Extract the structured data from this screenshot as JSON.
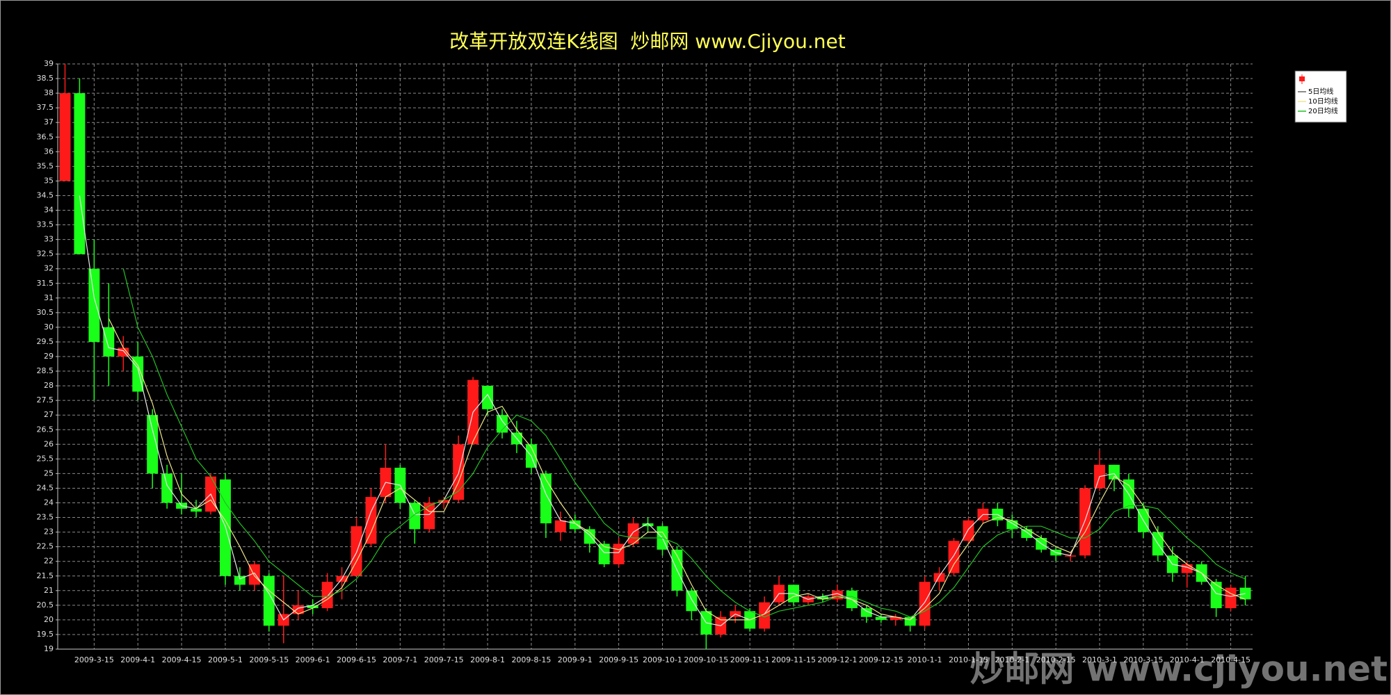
{
  "chart_data": {
    "type": "candlestick",
    "title": "改革开放双连K线图  炒邮网 www.Cjiyou.net",
    "watermark": "炒邮网 www.cjiyou.net",
    "categories": [
      null,
      null,
      "2009-3-15",
      null,
      null,
      "2009-4-1",
      null,
      null,
      "2009-4-15",
      null,
      null,
      "2009-5-1",
      null,
      null,
      "2009-5-15",
      null,
      null,
      "2009-6-1",
      null,
      null,
      "2009-6-15",
      null,
      null,
      "2009-7-1",
      null,
      null,
      "2009-7-15",
      null,
      null,
      "2009-8-1",
      null,
      null,
      "2009-8-15",
      null,
      null,
      "2009-9-1",
      null,
      null,
      "2009-9-15",
      null,
      null,
      "2009-10-1",
      null,
      null,
      "2009-10-15",
      null,
      null,
      "2009-11-1",
      null,
      null,
      "2009-11-15",
      null,
      null,
      "2009-12-1",
      null,
      null,
      "2009-12-15",
      null,
      null,
      "2010-1-1",
      null,
      null,
      "2010-1-15",
      null,
      null,
      "2010-2-1",
      null,
      null,
      "2010-2-15",
      null,
      null,
      "2010-3-1",
      null,
      null,
      "2010-3-15",
      null,
      null,
      "2010-4-1",
      null,
      null,
      "2010-4-15",
      null
    ],
    "open": [
      35,
      38,
      32,
      30,
      29,
      29,
      27,
      25,
      24,
      23.8,
      23.7,
      24.8,
      21.5,
      21.2,
      21.5,
      19.8,
      20.2,
      20.5,
      20.4,
      21.3,
      21.5,
      22.6,
      24.2,
      25.2,
      24,
      23.1,
      24,
      24.1,
      26,
      28,
      27,
      26.4,
      26,
      25,
      23,
      23.4,
      23.1,
      22.6,
      21.9,
      22.6,
      23.3,
      23.2,
      22.4,
      21,
      20.3,
      19.5,
      20.1,
      20.3,
      19.7,
      20.6,
      21.2,
      20.6,
      20.8,
      20.7,
      21,
      20.4,
      20.1,
      20,
      20.1,
      19.8,
      21.3,
      21.6,
      22.7,
      23.4,
      23.8,
      23.4,
      23.1,
      22.8,
      22.4,
      22.2,
      22.2,
      24.5,
      25.3,
      24.8,
      23.8,
      23,
      22.2,
      21.6,
      21.9,
      21.3,
      20.4,
      21.1
    ],
    "high": [
      39,
      38.5,
      33,
      31.5,
      29.7,
      29.5,
      27.2,
      25.3,
      25,
      24.1,
      25,
      25,
      21.8,
      22,
      21.6,
      21.5,
      21,
      20.7,
      21.6,
      21.8,
      23.5,
      24.5,
      26,
      25.3,
      24.1,
      24.2,
      24.2,
      26.3,
      28.3,
      28,
      27.2,
      26.8,
      26.2,
      25.1,
      23.7,
      23.6,
      23.2,
      22.7,
      22.8,
      23.5,
      23.5,
      23.3,
      22.5,
      21.1,
      20.4,
      20.3,
      20.5,
      20.4,
      20.8,
      21.5,
      21.2,
      20.9,
      20.9,
      21.2,
      21.1,
      20.5,
      20.2,
      20.2,
      20.1,
      21.5,
      21.8,
      22.8,
      23.5,
      24,
      24,
      23.6,
      23.2,
      22.9,
      22.5,
      22.3,
      24.6,
      25.8,
      25.3,
      25,
      24,
      23.2,
      22.5,
      22,
      22,
      21.4,
      21.2,
      21.5
    ],
    "low": [
      35,
      32.5,
      27.5,
      28,
      28.5,
      27.5,
      24.5,
      23.8,
      23.6,
      23.5,
      23.6,
      21.2,
      21,
      21,
      19.6,
      19.2,
      20,
      20.2,
      20.3,
      20.7,
      21.5,
      22.5,
      24,
      23.8,
      22.6,
      23,
      23.8,
      24,
      26,
      27,
      26.2,
      25.7,
      25,
      22.8,
      22.7,
      23,
      22.3,
      21.8,
      21.8,
      22.5,
      23,
      22.2,
      20.8,
      20,
      19,
      19.4,
      19.9,
      19.6,
      19.6,
      20.5,
      20.5,
      20.5,
      20.6,
      20.6,
      20.3,
      19.9,
      19.9,
      19.8,
      19.6,
      19.7,
      21,
      21.5,
      22.6,
      23.3,
      23.2,
      22.8,
      22.7,
      22.3,
      22,
      22,
      22.1,
      24.4,
      24.4,
      23.5,
      22.8,
      22,
      21.3,
      21.1,
      21.2,
      20.1,
      20.3,
      20.5
    ],
    "close": [
      38,
      32.5,
      29.5,
      29,
      29.3,
      27.8,
      25,
      24,
      23.8,
      23.7,
      24.9,
      21.5,
      21.2,
      21.9,
      19.8,
      20.2,
      20.5,
      20.4,
      21.3,
      21.5,
      23.2,
      24.2,
      25.2,
      24,
      23.1,
      24,
      24.1,
      26,
      28.2,
      27.2,
      26.4,
      26,
      25.2,
      23.3,
      23.4,
      23.1,
      22.6,
      21.9,
      22.6,
      23.3,
      23.2,
      22.4,
      21,
      20.3,
      19.5,
      20.1,
      20.3,
      19.7,
      20.6,
      21.2,
      20.6,
      20.8,
      20.7,
      21,
      20.4,
      20.1,
      20,
      20.1,
      19.8,
      21.3,
      21.6,
      22.7,
      23.4,
      23.8,
      23.4,
      23.1,
      22.8,
      22.4,
      22.2,
      22.2,
      24.5,
      25.3,
      24.8,
      23.8,
      23,
      22.2,
      21.6,
      21.9,
      21.3,
      20.4,
      21.1,
      20.7
    ],
    "up_color": "#ff1a1a",
    "down_color": "#1aff1a",
    "series": [
      {
        "name": "5日均线",
        "color": "#e8e8e8",
        "values": [
          null,
          34.5,
          31,
          29.3,
          29.2,
          28.6,
          26.5,
          24.6,
          23.9,
          23.8,
          24.3,
          23.2,
          21.4,
          21.6,
          20.9,
          20,
          20.4,
          20.5,
          20.8,
          21.4,
          22.3,
          23.7,
          24.7,
          24.6,
          23.6,
          23.6,
          24.1,
          25,
          27.1,
          27.7,
          26.8,
          26.2,
          25.6,
          24.3,
          23.4,
          23.3,
          22.9,
          22.3,
          22.3,
          23,
          23.3,
          22.8,
          21.7,
          20.7,
          19.9,
          19.8,
          20.2,
          20,
          20.2,
          20.9,
          20.9,
          20.7,
          20.8,
          20.9,
          20.7,
          20.3,
          20.1,
          20.1,
          20,
          20.6,
          21.5,
          22.2,
          23.1,
          23.6,
          23.6,
          23.3,
          23,
          22.6,
          22.3,
          22.2,
          23.4,
          24.9,
          25,
          24.3,
          23.4,
          22.6,
          21.9,
          21.8,
          21.6,
          20.9,
          20.8,
          20.9
        ]
      },
      {
        "name": "10日均线",
        "color": "#f0e68c",
        "values": [
          null,
          null,
          null,
          30.3,
          29.3,
          28.7,
          27.4,
          25.6,
          24.3,
          23.8,
          24.1,
          23.4,
          22.5,
          21.5,
          21,
          20.6,
          20.2,
          20.4,
          20.7,
          21.1,
          22,
          23,
          24.2,
          24.5,
          24.1,
          23.7,
          23.7,
          24.7,
          26.1,
          27.1,
          27.3,
          26.5,
          25.9,
          24.8,
          24,
          23.3,
          23,
          22.5,
          22.4,
          22.6,
          23,
          23,
          22.2,
          21.2,
          20.3,
          20,
          20,
          20,
          20.2,
          20.5,
          20.8,
          20.9,
          20.7,
          20.8,
          20.7,
          20.5,
          20.2,
          20.1,
          20,
          20.4,
          20.9,
          21.9,
          22.6,
          23.3,
          23.5,
          23.4,
          23.1,
          22.8,
          22.5,
          22.3,
          23,
          24,
          24.9,
          24.6,
          23.9,
          23,
          22.3,
          21.9,
          21.6,
          21.2,
          20.9,
          20.7
        ]
      },
      {
        "name": "20日均线",
        "color": "#22c022",
        "values": [
          null,
          null,
          null,
          null,
          32,
          30,
          29,
          27.7,
          26.6,
          25.5,
          24.9,
          24,
          23.3,
          22.7,
          22,
          21.6,
          21.2,
          20.8,
          20.8,
          21,
          21.4,
          22,
          22.8,
          23.2,
          23.6,
          23.9,
          24.1,
          24.4,
          25,
          25.9,
          26.5,
          27,
          26.8,
          26.3,
          25.5,
          24.7,
          24,
          23.3,
          22.9,
          22.8,
          22.8,
          22.8,
          22.6,
          22.1,
          21.5,
          21,
          20.6,
          20.3,
          20.1,
          20.3,
          20.4,
          20.5,
          20.6,
          20.8,
          20.8,
          20.6,
          20.4,
          20.3,
          20.1,
          20.3,
          20.6,
          21.1,
          21.8,
          22.5,
          22.9,
          23.1,
          23.2,
          23.2,
          23,
          22.8,
          22.8,
          23.1,
          23.7,
          23.9,
          23.9,
          23.8,
          23.3,
          22.8,
          22.4,
          21.9,
          21.6,
          21.4
        ]
      }
    ],
    "ylim": [
      19,
      39
    ],
    "yticks": [
      19,
      19.5,
      20,
      20.5,
      21,
      21.5,
      22,
      22.5,
      23,
      23.5,
      24,
      24.5,
      25,
      25.5,
      26,
      26.5,
      27,
      27.5,
      28,
      28.5,
      29,
      29.5,
      30,
      30.5,
      31,
      31.5,
      32,
      32.5,
      33,
      33.5,
      34,
      34.5,
      35,
      35.5,
      36,
      36.5,
      37,
      37.5,
      38,
      38.5,
      39
    ],
    "grid": true,
    "legend": "top-right"
  }
}
